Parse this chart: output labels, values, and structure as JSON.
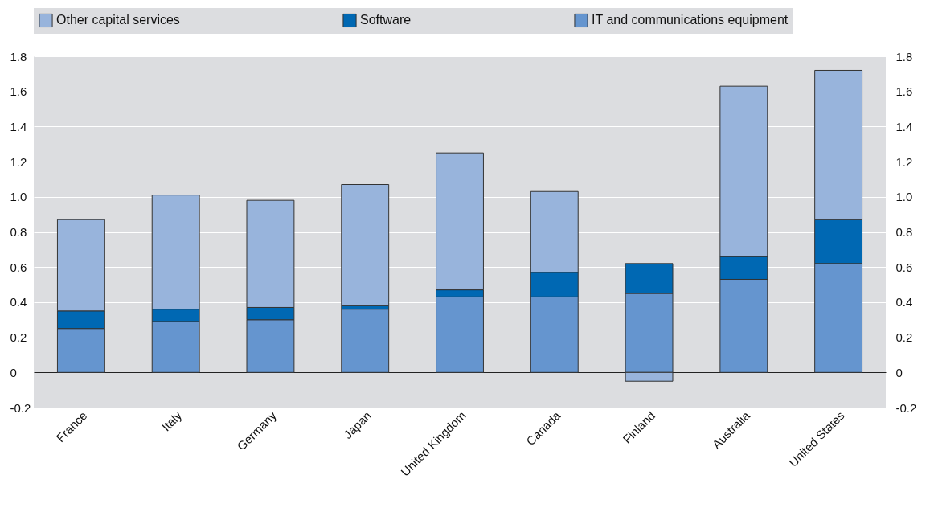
{
  "chart_data": {
    "type": "bar",
    "stacked": true,
    "categories": [
      "France",
      "Italy",
      "Germany",
      "Japan",
      "United Kingdom",
      "Canada",
      "Finland",
      "Australia",
      "United States"
    ],
    "series": [
      {
        "name": "IT and communications equipment",
        "color": "#6595cf",
        "values": [
          0.25,
          0.29,
          0.3,
          0.36,
          0.43,
          0.43,
          0.45,
          0.53,
          0.62
        ]
      },
      {
        "name": "Software",
        "color": "#0068b3",
        "values": [
          0.1,
          0.07,
          0.07,
          0.02,
          0.04,
          0.14,
          0.17,
          0.13,
          0.25
        ]
      },
      {
        "name": "Other capital services",
        "color": "#98b4dc",
        "values": [
          0.52,
          0.65,
          0.61,
          0.69,
          0.78,
          0.46,
          -0.05,
          0.97,
          0.85
        ]
      }
    ],
    "ylim": [
      -0.2,
      1.8
    ],
    "yticks": [
      -0.2,
      0,
      0.2,
      0.4,
      0.6,
      0.8,
      {
        "value": 1,
        "label": "1.0"
      },
      1.2,
      1.4,
      1.6,
      1.8
    ],
    "y2lim": [
      -0.2,
      1.8
    ],
    "y2ticks": [
      -0.2,
      0,
      0.2,
      0.4,
      0.6,
      0.8,
      {
        "value": 1,
        "label": "1.0"
      },
      1.2,
      1.4,
      1.6,
      1.8
    ],
    "grid": "y",
    "legend": "top"
  }
}
